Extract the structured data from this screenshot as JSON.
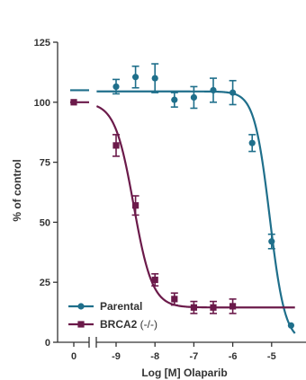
{
  "chart_data": {
    "type": "scatter",
    "xlabel": "Log [M] Olaparib",
    "ylabel": "% of control",
    "ylim": [
      0,
      125
    ],
    "y_ticks": [
      "0",
      "25",
      "50",
      "75",
      "100",
      "125"
    ],
    "x_ticks": [
      "0",
      "-9",
      "-8",
      "-7",
      "-6",
      "-5"
    ],
    "x_tick_values": [
      0,
      -9,
      -8,
      -7,
      -6,
      -5
    ],
    "x_axis_break": "between 0 and -9",
    "legend_position": "bottom-left",
    "series": [
      {
        "name": "Parental",
        "legend_main": "Parental",
        "legend_sub": "",
        "color": "#1f6f8b",
        "marker": "circle",
        "baseline_at_zero": 105,
        "x": [
          -9,
          -8.5,
          -8,
          -7.5,
          -7,
          -6.5,
          -6,
          -5.5,
          -5,
          -4.5
        ],
        "y": [
          106.5,
          110.5,
          110,
          101,
          102,
          105,
          104,
          83,
          42,
          7
        ],
        "error": [
          3,
          4.5,
          6,
          3,
          4.5,
          5,
          5,
          3.5,
          3,
          0
        ],
        "fit": {
          "top": 104.5,
          "bottom": 0,
          "log_ec50": -5.05,
          "hill": 2.2
        }
      },
      {
        "name": "BRCA2 (-/-)",
        "legend_main": "BRCA2",
        "legend_sub": " (-/-)",
        "color": "#6b1a4a",
        "marker": "square",
        "baseline_at_zero": 100,
        "x": [
          0,
          -9,
          -8.5,
          -8,
          -7.5,
          -7,
          -6.5,
          -6
        ],
        "y": [
          100,
          82,
          57,
          26,
          18,
          14.5,
          14.5,
          15
        ],
        "error": [
          0,
          4.5,
          4,
          2.5,
          2.5,
          2.5,
          2.5,
          3
        ],
        "fit": {
          "top": 100,
          "bottom": 14.5,
          "log_ec50": -8.55,
          "hill": 1.8
        }
      }
    ]
  }
}
